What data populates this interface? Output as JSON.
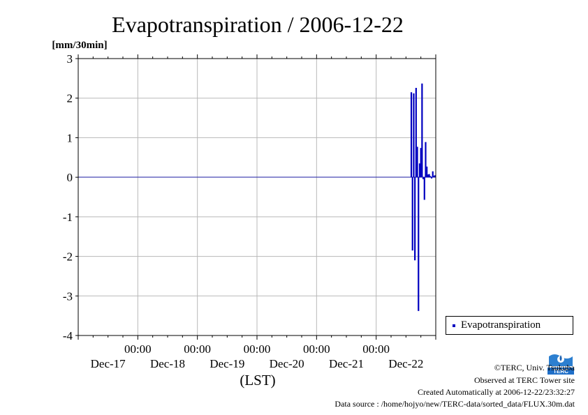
{
  "chart_data": {
    "type": "bar",
    "title": "Evapotranspiration / 2006-12-22",
    "ylabel": "[mm/30min]",
    "xlabel": "(LST)",
    "ylim": [
      -4,
      3
    ],
    "yticks": [
      "3",
      "2",
      "1",
      "0",
      "-1",
      "-2",
      "-3",
      "-4"
    ],
    "ytick_values": [
      3,
      2,
      1,
      0,
      -1,
      -2,
      -3,
      -4
    ],
    "xlim": [
      0,
      6
    ],
    "x_time_labels": [
      "00:00",
      "00:00",
      "00:00",
      "00:00",
      "00:00"
    ],
    "x_date_labels": [
      "Dec-17",
      "Dec-18",
      "Dec-19",
      "Dec-20",
      "Dec-21",
      "Dec-22"
    ],
    "grid": true,
    "legend_position": "right",
    "series": [
      {
        "name": "Evapotranspiration",
        "color": "#0000c0",
        "x": [
          5.57,
          5.59,
          5.61,
          5.63,
          5.65,
          5.67,
          5.69,
          5.71,
          5.73,
          5.75,
          5.77,
          5.79,
          5.81,
          5.83,
          5.85,
          5.87,
          5.89,
          5.91,
          5.93,
          5.95,
          5.97,
          5.99
        ],
        "values": [
          0.0,
          2.15,
          -1.85,
          2.12,
          -2.1,
          2.26,
          0.77,
          -3.38,
          0.35,
          0.74,
          2.37,
          -0.05,
          -0.57,
          0.89,
          0.27,
          0.07,
          0.08,
          0.03,
          -0.03,
          0.15,
          0.04,
          0.05
        ]
      }
    ]
  },
  "legend": {
    "label": "Evapotranspiration"
  },
  "logo": {
    "text": "TERC"
  },
  "credits": {
    "line1": "©TERC, Univ. Tsukuba",
    "line2": "Observed at TERC Tower site",
    "line3": "Created Automatically at 2006-12-22/23:32:27",
    "line4": "Data source : /home/hojyo/new/TERC-data/sorted_data/FLUX.30m.dat"
  }
}
